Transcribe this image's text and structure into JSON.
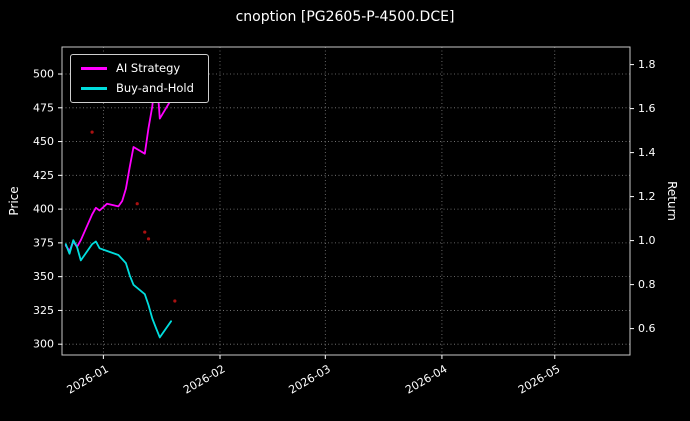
{
  "chart_data": {
    "type": "line",
    "title": "cnoption [PG2605-P-4500.DCE]",
    "ylabel_left": "Price",
    "ylabel_right": "Return",
    "background": "#000000",
    "grid": true,
    "legend_position": "upper-left",
    "x_lim": [
      "2025-12-21",
      "2026-05-21"
    ],
    "price_lim": [
      292,
      520
    ],
    "return_lim": [
      0.48,
      1.88
    ],
    "price_ticks": [
      300,
      325,
      350,
      375,
      400,
      425,
      450,
      475,
      500
    ],
    "return_ticks": [
      0.6,
      0.8,
      1.0,
      1.2,
      1.4,
      1.6,
      1.8
    ],
    "x_ticks": [
      {
        "date": "2026-01-01",
        "label": "2026-01"
      },
      {
        "date": "2026-02-01",
        "label": "2026-02"
      },
      {
        "date": "2026-03-01",
        "label": "2026-03"
      },
      {
        "date": "2026-04-01",
        "label": "2026-04"
      },
      {
        "date": "2026-05-01",
        "label": "2026-05"
      }
    ],
    "x": [
      "2025-12-22",
      "2025-12-23",
      "2025-12-24",
      "2025-12-25",
      "2025-12-26",
      "2025-12-29",
      "2025-12-30",
      "2025-12-31",
      "2026-01-02",
      "2026-01-05",
      "2026-01-06",
      "2026-01-07",
      "2026-01-08",
      "2026-01-09",
      "2026-01-12",
      "2026-01-13",
      "2026-01-14",
      "2026-01-15",
      "2026-01-16",
      "2026-01-19"
    ],
    "series": [
      {
        "name": "AI Strategy",
        "color": "#ff00ff",
        "values": [
          373,
          369,
          376,
          372,
          377,
          396,
          401,
          399,
          404,
          402,
          406,
          415,
          431,
          446,
          441,
          460,
          476,
          505,
          467,
          481
        ]
      },
      {
        "name": "Buy-and-Hold",
        "color": "#00dddd",
        "values": [
          374,
          367,
          377,
          372,
          362,
          374,
          376,
          371,
          369,
          366,
          363,
          360,
          351,
          344,
          337,
          329,
          319,
          312,
          305,
          317
        ]
      }
    ],
    "trade_markers": {
      "color": "#aa1111",
      "points": [
        [
          "2025-12-29",
          457
        ],
        [
          "2026-01-10",
          404
        ],
        [
          "2026-01-12",
          383
        ],
        [
          "2026-01-13",
          378
        ],
        [
          "2026-01-20",
          332
        ]
      ]
    }
  }
}
